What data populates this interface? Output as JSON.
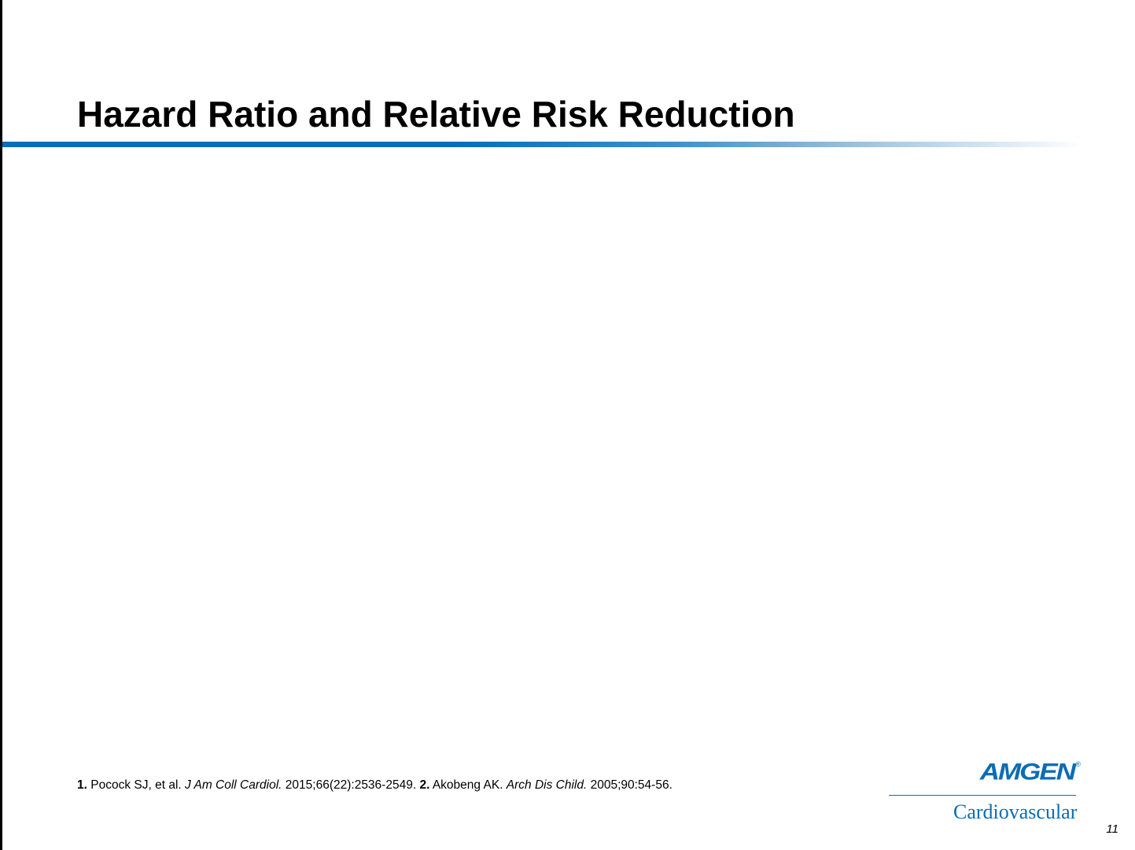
{
  "slide": {
    "title": "Hazard Ratio and Relative Risk Reduction",
    "page_number": "11"
  },
  "references": {
    "ref1": {
      "num": "1.",
      "authors": "Pocock SJ, et al.",
      "journal": "J Am Coll Cardiol.",
      "details": "2015;66(22):2536-2549."
    },
    "ref2": {
      "num": "2.",
      "authors": "Akobeng AK.",
      "journal": "Arch Dis Child.",
      "details": "2005;90:54-56."
    }
  },
  "logo": {
    "wordmark": "AMGEN",
    "registered": "®",
    "subtitle": "Cardiovascular"
  },
  "colors": {
    "brand_blue": "#0a6db5",
    "text": "#000000",
    "background": "#ffffff"
  }
}
